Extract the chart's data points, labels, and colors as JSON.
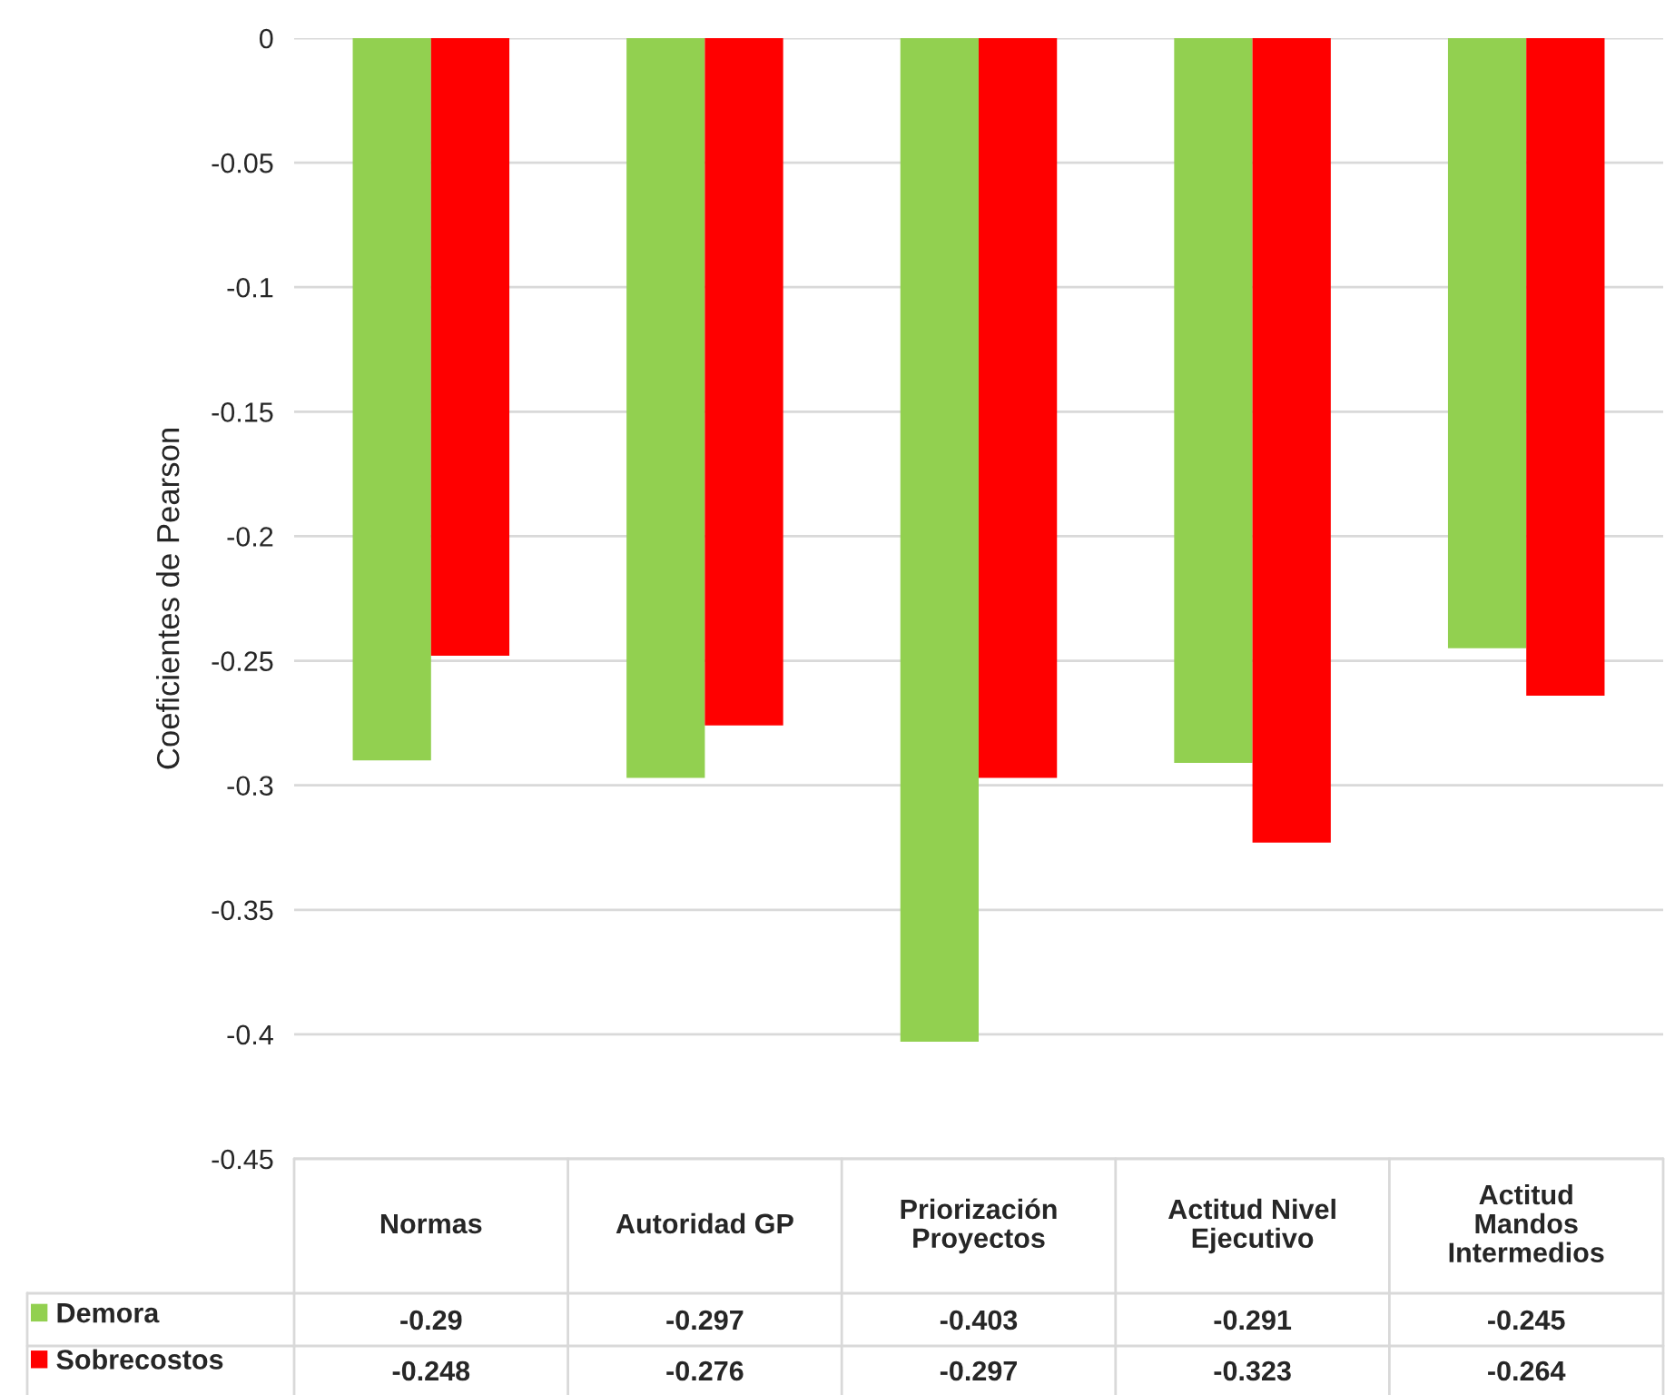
{
  "chart_data": {
    "type": "bar",
    "ylabel": "Coeficientes de Pearson",
    "categories": [
      "Normas",
      "Autoridad GP",
      "Priorización\nProyectos",
      "Actitud Nivel\nEjecutivo",
      "Actitud\nMandos\nIntermedios"
    ],
    "series": [
      {
        "name": "Demora",
        "color": "#92d050",
        "values": [
          -0.29,
          -0.297,
          -0.403,
          -0.291,
          -0.245
        ]
      },
      {
        "name": "Sobrecostos",
        "color": "#ff0000",
        "values": [
          -0.248,
          -0.276,
          -0.297,
          -0.323,
          -0.264
        ]
      }
    ],
    "ylim": [
      -0.45,
      0
    ],
    "yticks": [
      0,
      -0.05,
      -0.1,
      -0.15,
      -0.2,
      -0.25,
      -0.3,
      -0.35,
      -0.4,
      -0.45
    ],
    "grid": "y",
    "legend": "bottom",
    "data_labels": true
  }
}
